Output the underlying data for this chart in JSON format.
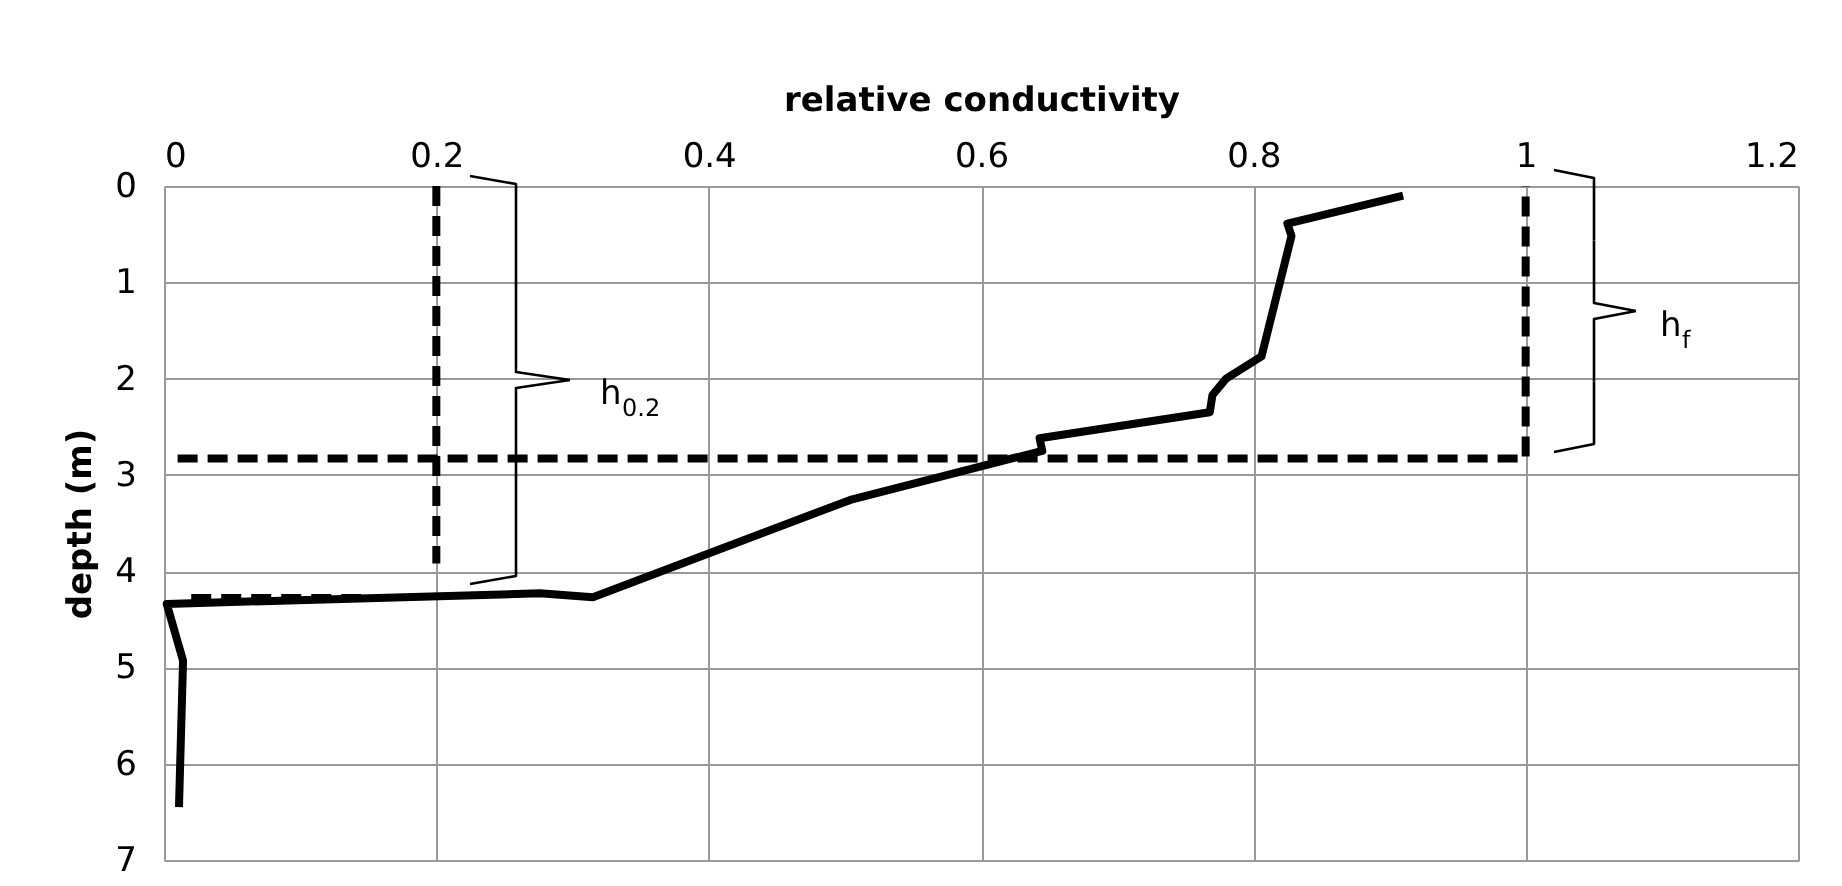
{
  "chart_data": {
    "type": "line",
    "xlabel": "relative conductivity",
    "ylabel": "depth (m)",
    "xlim": [
      0,
      1.2
    ],
    "xticks": [
      0,
      0.2,
      0.4,
      0.6,
      0.8,
      1,
      1.2
    ],
    "ylim": [
      7,
      0
    ],
    "yticks": [
      0,
      1,
      2,
      3,
      4,
      5,
      6,
      7
    ],
    "grid": true,
    "marker": "none",
    "series": [
      {
        "color": "#000000",
        "line_style": "solid",
        "x": [
          0.91,
          0.825,
          0.828,
          0.806,
          0.78,
          0.77,
          0.768,
          0.643,
          0.645,
          0.504,
          0.315,
          0.276,
          0.002,
          0.014,
          0.011
        ],
        "values": [
          0.1,
          0.39,
          0.52,
          1.77,
          2.0,
          2.17,
          2.35,
          2.62,
          2.75,
          3.26,
          4.27,
          4.23,
          4.34,
          4.93,
          6.45
        ]
      },
      {
        "color": "#000000",
        "line_style": "dashed",
        "x": [
          0.2,
          0.2
        ],
        "values": [
          0,
          3.92
        ]
      },
      {
        "color": "#000000",
        "line_style": "dashed",
        "x": [
          0.02,
          0.15
        ],
        "values": [
          4.28,
          4.28
        ]
      },
      {
        "color": "#000000",
        "line_style": "dashed",
        "x": [
          0.01,
          1,
          1
        ],
        "values": [
          2.83,
          2.83,
          0
        ]
      }
    ],
    "annotations": [
      "h$_{0.2}$",
      "h$_{f}$"
    ]
  }
}
